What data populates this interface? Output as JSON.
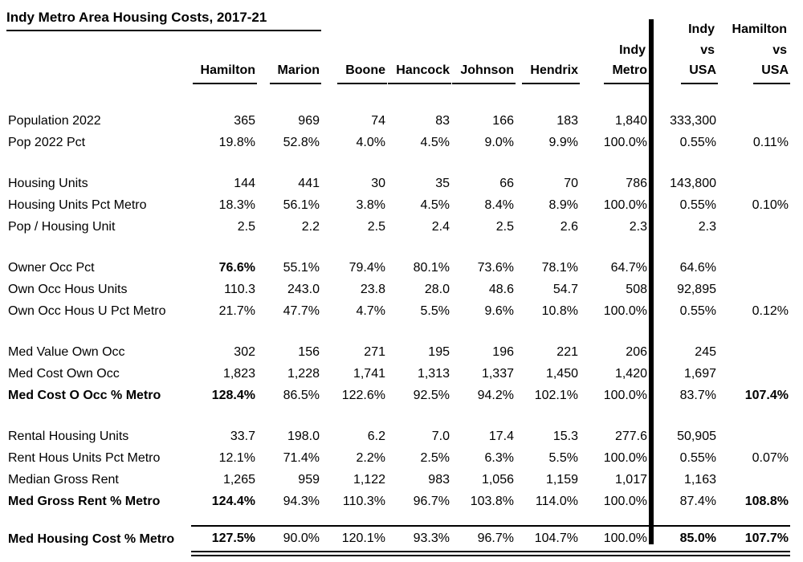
{
  "page": {
    "title": "Indy Metro Area Housing Costs, 2017-21"
  },
  "colors": {
    "text": "#000000",
    "background": "#ffffff",
    "divider": "#000000"
  },
  "table": {
    "columns": [
      {
        "key": "label",
        "header_lines": []
      },
      {
        "key": "hamilton",
        "header_lines": [
          "Hamilton"
        ]
      },
      {
        "key": "marion",
        "header_lines": [
          "Marion"
        ]
      },
      {
        "key": "boone",
        "header_lines": [
          "Boone"
        ]
      },
      {
        "key": "hancock",
        "header_lines": [
          "Hancock"
        ]
      },
      {
        "key": "johnson",
        "header_lines": [
          "Johnson"
        ]
      },
      {
        "key": "hendrix",
        "header_lines": [
          "Hendrix"
        ]
      },
      {
        "key": "indy_metro",
        "header_lines": [
          "Indy",
          "Metro"
        ]
      },
      {
        "key": "indy_vs_usa",
        "header_lines": [
          "Indy",
          "vs",
          "USA"
        ]
      },
      {
        "key": "hamilton_vs_usa",
        "header_lines": [
          "Hamilton",
          "vs",
          "USA"
        ]
      }
    ],
    "groups": [
      {
        "name": "population",
        "rows": [
          {
            "label": "Population 2022",
            "bold_label": false,
            "bold_cells": [],
            "cells": [
              "365",
              "969",
              "74",
              "83",
              "166",
              "183",
              "1,840",
              "333,300",
              ""
            ]
          },
          {
            "label": "Pop 2022 Pct",
            "bold_label": false,
            "bold_cells": [],
            "cells": [
              "19.8%",
              "52.8%",
              "4.0%",
              "4.5%",
              "9.0%",
              "9.9%",
              "100.0%",
              "0.55%",
              "0.11%"
            ]
          }
        ]
      },
      {
        "name": "housing-units",
        "rows": [
          {
            "label": "Housing Units",
            "bold_label": false,
            "bold_cells": [],
            "cells": [
              "144",
              "441",
              "30",
              "35",
              "66",
              "70",
              "786",
              "143,800",
              ""
            ]
          },
          {
            "label": "Housing Units Pct Metro",
            "bold_label": false,
            "bold_cells": [],
            "cells": [
              "18.3%",
              "56.1%",
              "3.8%",
              "4.5%",
              "8.4%",
              "8.9%",
              "100.0%",
              "0.55%",
              "0.10%"
            ]
          },
          {
            "label": "Pop / Housing Unit",
            "bold_label": false,
            "bold_cells": [],
            "cells": [
              "2.5",
              "2.2",
              "2.5",
              "2.4",
              "2.5",
              "2.6",
              "2.3",
              "2.3",
              ""
            ]
          }
        ]
      },
      {
        "name": "owner-occupied",
        "rows": [
          {
            "label": "Owner Occ Pct",
            "bold_label": false,
            "bold_cells": [
              0
            ],
            "cells": [
              "76.6%",
              "55.1%",
              "79.4%",
              "80.1%",
              "73.6%",
              "78.1%",
              "64.7%",
              "64.6%",
              ""
            ]
          },
          {
            "label": "Own Occ Hous Units",
            "bold_label": false,
            "bold_cells": [],
            "cells": [
              "110.3",
              "243.0",
              "23.8",
              "28.0",
              "48.6",
              "54.7",
              "508",
              "92,895",
              ""
            ]
          },
          {
            "label": "Own Occ Hous U Pct Metro",
            "bold_label": false,
            "bold_cells": [],
            "cells": [
              "21.7%",
              "47.7%",
              "4.7%",
              "5.5%",
              "9.6%",
              "10.8%",
              "100.0%",
              "0.55%",
              "0.12%"
            ]
          }
        ]
      },
      {
        "name": "owner-cost",
        "rows": [
          {
            "label": "Med Value Own Occ",
            "bold_label": false,
            "bold_cells": [],
            "cells": [
              "302",
              "156",
              "271",
              "195",
              "196",
              "221",
              "206",
              "245",
              ""
            ]
          },
          {
            "label": "Med Cost Own Occ",
            "bold_label": false,
            "bold_cells": [],
            "cells": [
              "1,823",
              "1,228",
              "1,741",
              "1,313",
              "1,337",
              "1,450",
              "1,420",
              "1,697",
              ""
            ]
          },
          {
            "label": "Med Cost O Occ % Metro",
            "bold_label": true,
            "bold_cells": [
              0,
              8
            ],
            "cells": [
              "128.4%",
              "86.5%",
              "122.6%",
              "92.5%",
              "94.2%",
              "102.1%",
              "100.0%",
              "83.7%",
              "107.4%"
            ]
          }
        ]
      },
      {
        "name": "rental",
        "rows": [
          {
            "label": "Rental Housing Units",
            "bold_label": false,
            "bold_cells": [],
            "cells": [
              "33.7",
              "198.0",
              "6.2",
              "7.0",
              "17.4",
              "15.3",
              "277.6",
              "50,905",
              ""
            ]
          },
          {
            "label": "Rent Hous Units Pct Metro",
            "bold_label": false,
            "bold_cells": [],
            "cells": [
              "12.1%",
              "71.4%",
              "2.2%",
              "2.5%",
              "6.3%",
              "5.5%",
              "100.0%",
              "0.55%",
              "0.07%"
            ]
          },
          {
            "label": "Median Gross Rent",
            "bold_label": false,
            "bold_cells": [],
            "cells": [
              "1,265",
              "959",
              "1,122",
              "983",
              "1,056",
              "1,159",
              "1,017",
              "1,163",
              ""
            ]
          },
          {
            "label": "Med Gross Rent % Metro",
            "bold_label": true,
            "bold_cells": [
              0,
              8
            ],
            "cells": [
              "124.4%",
              "94.3%",
              "110.3%",
              "96.7%",
              "103.8%",
              "114.0%",
              "100.0%",
              "87.4%",
              "108.8%"
            ]
          }
        ]
      }
    ],
    "total_row": {
      "label": "Med Housing Cost % Metro",
      "bold_label": true,
      "bold_cells": [
        0,
        7,
        8
      ],
      "cells": [
        "127.5%",
        "90.0%",
        "120.1%",
        "93.3%",
        "96.7%",
        "104.7%",
        "100.0%",
        "85.0%",
        "107.7%"
      ]
    }
  }
}
